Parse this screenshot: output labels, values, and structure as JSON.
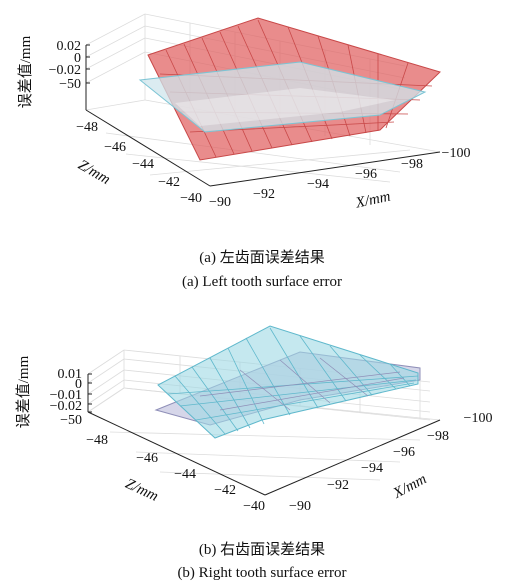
{
  "chart_data": [
    {
      "type": "surface",
      "caption_cn": "(a) 左齿面误差结果",
      "caption_en": "(a) Left tooth surface error",
      "zlabel": "误差值/mm",
      "xlabel": "X/mm",
      "ylabel": "Z/mm",
      "x_ticks": [
        "−90",
        "−92",
        "−94",
        "−96",
        "−98",
        "−100"
      ],
      "y_ticks": [
        "−48",
        "−46",
        "−44",
        "−42",
        "−40"
      ],
      "z_ticks": [
        "0.02",
        "0",
        "−0.02",
        "−50"
      ],
      "series": [
        {
          "color": "#e06060"
        },
        {
          "color": "#9fd8e4"
        }
      ]
    },
    {
      "type": "surface",
      "caption_cn": "(b) 右齿面误差结果",
      "caption_en": "(b) Right tooth surface error",
      "zlabel": "误差值/mm",
      "xlabel": "X/mm",
      "ylabel": "Z/mm",
      "x_ticks": [
        "−90",
        "−92",
        "−94",
        "−96",
        "−98",
        "−100"
      ],
      "y_ticks": [
        "−48",
        "−46",
        "−44",
        "−42",
        "−40"
      ],
      "z_ticks": [
        "0.01",
        "0",
        "−0.01",
        "−0.02",
        "−50"
      ],
      "series": [
        {
          "color": "#9fd8e4"
        },
        {
          "color": "#b8b8d8"
        }
      ]
    }
  ]
}
